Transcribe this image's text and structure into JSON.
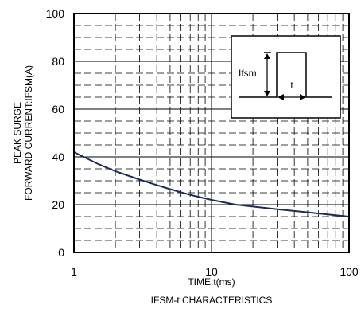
{
  "chart_data": {
    "type": "line",
    "title": "IFSM-t CHARACTERISTICS",
    "xlabel": "TIME:t(ms)",
    "ylabel_lines": [
      "PEAK SURGE",
      "FORWARD CURRENT:IFSM(A)"
    ],
    "x_scale": "log",
    "xlim": [
      1,
      100
    ],
    "ylim": [
      0,
      100
    ],
    "x_ticks": [
      1,
      10,
      100
    ],
    "x_tick_labels": [
      "1",
      "10",
      "100"
    ],
    "y_ticks": [
      0,
      20,
      40,
      60,
      80,
      100
    ],
    "y_tick_labels": [
      "0",
      "20",
      "40",
      "60",
      "80",
      "100"
    ],
    "grid": true,
    "series": [
      {
        "color": "#1f2a5c",
        "x": [
          1,
          1.5,
          2,
          3,
          4,
          5,
          7,
          10,
          15,
          20,
          30,
          50,
          70,
          100
        ],
        "y": [
          42,
          37,
          34,
          30.5,
          28.2,
          26.5,
          24.1,
          22,
          20,
          19.2,
          18.1,
          16.8,
          15.9,
          15
        ]
      }
    ],
    "inset": {
      "labels": [
        "Ifsm",
        "t"
      ]
    }
  }
}
